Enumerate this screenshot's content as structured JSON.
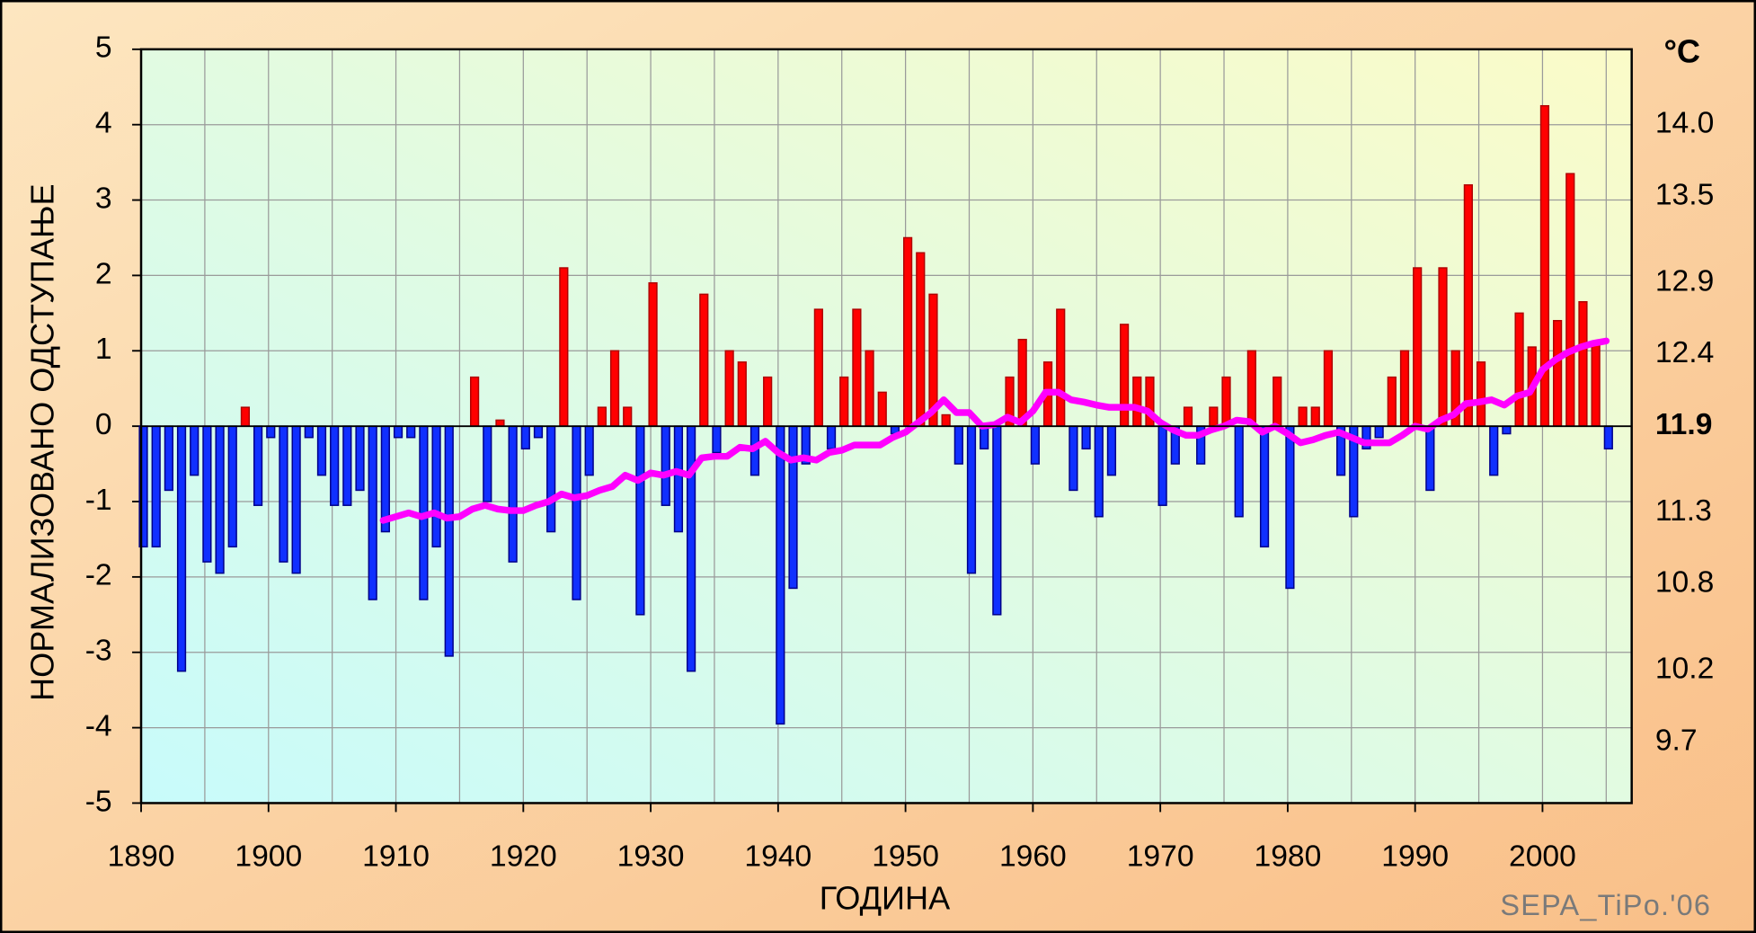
{
  "chart_data": {
    "type": "bar",
    "x": [
      1890,
      1891,
      1892,
      1893,
      1894,
      1895,
      1896,
      1897,
      1898,
      1899,
      1900,
      1901,
      1902,
      1903,
      1904,
      1905,
      1906,
      1907,
      1908,
      1909,
      1910,
      1911,
      1912,
      1913,
      1914,
      1915,
      1916,
      1917,
      1918,
      1919,
      1920,
      1921,
      1922,
      1923,
      1924,
      1925,
      1926,
      1927,
      1928,
      1929,
      1930,
      1931,
      1932,
      1933,
      1934,
      1935,
      1936,
      1937,
      1938,
      1939,
      1940,
      1941,
      1942,
      1943,
      1944,
      1945,
      1946,
      1947,
      1948,
      1949,
      1950,
      1951,
      1952,
      1953,
      1954,
      1955,
      1956,
      1957,
      1958,
      1959,
      1960,
      1961,
      1962,
      1963,
      1964,
      1965,
      1966,
      1967,
      1968,
      1969,
      1970,
      1971,
      1972,
      1973,
      1974,
      1975,
      1976,
      1977,
      1978,
      1979,
      1980,
      1981,
      1982,
      1983,
      1984,
      1985,
      1986,
      1987,
      1988,
      1989,
      1990,
      1991,
      1992,
      1993,
      1994,
      1995,
      1996,
      1997,
      1998,
      1999,
      2000,
      2001,
      2002,
      2003,
      2004,
      2005
    ],
    "series": [
      {
        "type": "bar",
        "positive_color": "#ff0000",
        "negative_color": "#1030ff",
        "values": [
          -1.6,
          -1.6,
          -0.85,
          -3.25,
          -0.65,
          -1.8,
          -1.95,
          -1.6,
          0.25,
          -1.05,
          -0.15,
          -1.8,
          -1.95,
          -0.15,
          -0.65,
          -1.05,
          -1.05,
          -0.85,
          -2.3,
          -1.4,
          -0.15,
          -0.15,
          -2.3,
          -1.6,
          -3.05,
          0,
          0.65,
          -1.0,
          0.08,
          -1.8,
          -0.3,
          -0.15,
          -1.4,
          2.1,
          -2.3,
          -0.65,
          0.25,
          1.0,
          0.25,
          -2.5,
          1.9,
          -1.05,
          -1.4,
          -3.25,
          1.75,
          -0.35,
          1.0,
          0.85,
          -0.65,
          0.65,
          -3.95,
          -2.15,
          -0.5,
          1.55,
          -0.3,
          0.65,
          1.55,
          1.0,
          0.45,
          -0.1,
          2.5,
          2.3,
          1.75,
          0.15,
          -0.5,
          -1.95,
          -0.3,
          -2.5,
          0.65,
          1.15,
          -0.5,
          0.85,
          1.55,
          -0.85,
          -0.3,
          -1.2,
          -0.65,
          1.35,
          0.65,
          0.65,
          -1.05,
          -0.5,
          0.25,
          -0.5,
          0.25,
          0.65,
          -1.2,
          1.0,
          -1.6,
          0.65,
          -2.15,
          0.25,
          0.25,
          1.0,
          -0.65,
          -1.2,
          -0.3,
          -0.15,
          0.65,
          1.0,
          2.1,
          -0.85,
          2.1,
          1.0,
          3.2,
          0.85,
          -0.65,
          -0.1,
          1.5,
          1.05,
          4.25,
          1.4,
          3.35,
          1.65,
          1.1,
          -0.3
        ]
      },
      {
        "type": "line",
        "color": "#ff00ff",
        "values": [
          null,
          null,
          null,
          null,
          null,
          null,
          null,
          null,
          null,
          null,
          null,
          null,
          null,
          null,
          null,
          null,
          null,
          null,
          null,
          -1.25,
          -1.2,
          -1.15,
          -1.2,
          -1.15,
          -1.22,
          -1.2,
          -1.1,
          -1.05,
          -1.1,
          -1.12,
          -1.12,
          -1.05,
          -1.0,
          -0.9,
          -0.95,
          -0.92,
          -0.85,
          -0.8,
          -0.65,
          -0.72,
          -0.62,
          -0.65,
          -0.6,
          -0.65,
          -0.42,
          -0.4,
          -0.4,
          -0.28,
          -0.3,
          -0.2,
          -0.35,
          -0.45,
          -0.42,
          -0.45,
          -0.35,
          -0.32,
          -0.25,
          -0.25,
          -0.25,
          -0.15,
          -0.08,
          0.05,
          0.18,
          0.35,
          0.18,
          0.18,
          0,
          0.02,
          0.12,
          0.05,
          0.2,
          0.45,
          0.45,
          0.35,
          0.32,
          0.28,
          0.25,
          0.25,
          0.25,
          0.2,
          0.05,
          -0.05,
          -0.12,
          -0.12,
          -0.05,
          0,
          0.08,
          0.06,
          -0.08,
          0,
          -0.1,
          -0.22,
          -0.18,
          -0.12,
          -0.08,
          -0.15,
          -0.22,
          -0.22,
          -0.22,
          -0.12,
          0,
          -0.04,
          0.08,
          0.15,
          0.3,
          0.32,
          0.35,
          0.28,
          0.4,
          0.45,
          0.75,
          0.88,
          0.98,
          1.05,
          1.1,
          1.13
        ]
      }
    ],
    "xlabel": "ГОДИНА",
    "ylabel": "НОРМАЛИЗОВАНО ОДСТУПАЊЕ",
    "y2_unit": "°C",
    "watermark": "SEPA_TiPo.'06",
    "xlim": [
      1890,
      2007
    ],
    "xticks": [
      1890,
      1900,
      1910,
      1920,
      1930,
      1940,
      1950,
      1960,
      1970,
      1980,
      1990,
      2000
    ],
    "xminorticks": [
      1895,
      1905,
      1915,
      1925,
      1935,
      1945,
      1955,
      1965,
      1975,
      1985,
      1995,
      2005
    ],
    "ylim": [
      -5,
      5
    ],
    "yticks": [
      -5,
      -4,
      -3,
      -2,
      -1,
      0,
      1,
      2,
      3,
      4,
      5
    ],
    "y2lim": [
      9.275,
      14.525
    ],
    "y2ticks": [
      {
        "value": 14.0,
        "label": "14.0"
      },
      13.5,
      12.9,
      12.4,
      11.9,
      11.3,
      10.8,
      10.2,
      9.7
    ],
    "grid": true
  }
}
